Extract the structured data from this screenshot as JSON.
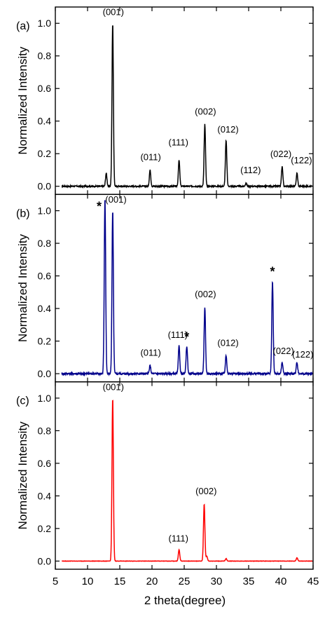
{
  "chart_data": [
    {
      "type": "line",
      "panel_label": "(a)",
      "ylabel": "Normalized Intensity",
      "ylim": [
        -0.05,
        1.1
      ],
      "yticks": [
        "0.0",
        "0.2",
        "0.4",
        "0.6",
        "0.8",
        "1.0"
      ],
      "color": "#000000",
      "peaks": [
        {
          "x": 12.9,
          "y": 0.08
        },
        {
          "x": 13.9,
          "y": 1.0
        },
        {
          "x": 19.7,
          "y": 0.1
        },
        {
          "x": 24.2,
          "y": 0.16
        },
        {
          "x": 28.2,
          "y": 0.38
        },
        {
          "x": 31.5,
          "y": 0.28
        },
        {
          "x": 34.6,
          "y": 0.02
        },
        {
          "x": 40.2,
          "y": 0.12
        },
        {
          "x": 42.5,
          "y": 0.08
        }
      ],
      "annotations": [
        {
          "text": "(001)",
          "x": 14.0,
          "y": 1.05
        },
        {
          "text": "(011)",
          "x": 19.8,
          "y": 0.16
        },
        {
          "text": "(111)",
          "x": 24.1,
          "y": 0.25
        },
        {
          "text": "(002)",
          "x": 28.3,
          "y": 0.44
        },
        {
          "text": "(012)",
          "x": 31.8,
          "y": 0.33
        },
        {
          "text": "(112)",
          "x": 35.3,
          "y": 0.08
        },
        {
          "text": "(022)",
          "x": 40.0,
          "y": 0.18
        },
        {
          "text": "(122)",
          "x": 43.2,
          "y": 0.14
        }
      ]
    },
    {
      "type": "line",
      "panel_label": "(b)",
      "ylabel": "Normalized Intensity",
      "ylim": [
        -0.05,
        1.1
      ],
      "yticks": [
        "0.0",
        "0.2",
        "0.4",
        "0.6",
        "0.8",
        "1.0"
      ],
      "color": "#00008b",
      "peaks": [
        {
          "x": 12.7,
          "y": 1.08
        },
        {
          "x": 13.9,
          "y": 1.0
        },
        {
          "x": 19.7,
          "y": 0.05
        },
        {
          "x": 24.2,
          "y": 0.17
        },
        {
          "x": 25.4,
          "y": 0.17
        },
        {
          "x": 28.2,
          "y": 0.41
        },
        {
          "x": 31.5,
          "y": 0.11
        },
        {
          "x": 38.7,
          "y": 0.57
        },
        {
          "x": 40.2,
          "y": 0.07
        },
        {
          "x": 42.5,
          "y": 0.07
        }
      ],
      "annotations": [
        {
          "text": "*",
          "x": 11.8,
          "y": 1.0
        },
        {
          "text": "(001)",
          "x": 14.4,
          "y": 1.05
        },
        {
          "text": "(011)",
          "x": 19.8,
          "y": 0.11
        },
        {
          "text": "(111)",
          "x": 24.0,
          "y": 0.22
        },
        {
          "text": "*",
          "x": 25.4,
          "y": 0.2
        },
        {
          "text": "(002)",
          "x": 28.3,
          "y": 0.47
        },
        {
          "text": "(012)",
          "x": 31.8,
          "y": 0.17
        },
        {
          "text": "*",
          "x": 38.7,
          "y": 0.6
        },
        {
          "text": "(022)",
          "x": 40.4,
          "y": 0.12
        },
        {
          "text": "(122)",
          "x": 43.4,
          "y": 0.1
        }
      ]
    },
    {
      "type": "line",
      "panel_label": "(c)",
      "ylabel": "Normalized Intensity",
      "xlabel": "2 theta(degree)",
      "xlim": [
        5,
        45
      ],
      "xticks": [
        "5",
        "10",
        "15",
        "20",
        "25",
        "30",
        "35",
        "40",
        "45"
      ],
      "ylim": [
        -0.05,
        1.1
      ],
      "yticks": [
        "0.0",
        "0.2",
        "0.4",
        "0.6",
        "0.8",
        "1.0"
      ],
      "color": "#ff0000",
      "peaks": [
        {
          "x": 13.9,
          "y": 1.0
        },
        {
          "x": 24.2,
          "y": 0.07
        },
        {
          "x": 28.1,
          "y": 0.35
        },
        {
          "x": 28.5,
          "y": 0.03
        },
        {
          "x": 31.5,
          "y": 0.015
        },
        {
          "x": 42.5,
          "y": 0.02
        }
      ],
      "annotations": [
        {
          "text": "(001)",
          "x": 14.0,
          "y": 1.05
        },
        {
          "text": "(111)",
          "x": 24.1,
          "y": 0.12
        },
        {
          "text": "(002)",
          "x": 28.4,
          "y": 0.41
        }
      ]
    }
  ]
}
